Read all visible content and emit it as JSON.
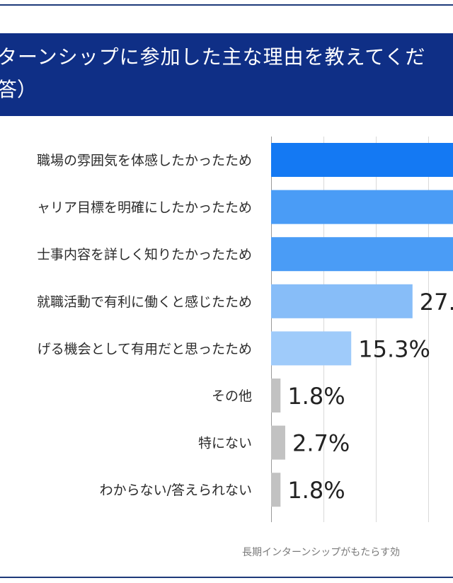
{
  "header": {
    "title_line1": "ターンシップに参加した主な理由を教えてくだ",
    "title_line2": "答）"
  },
  "source": "長期インターンシップがもたらす効",
  "colors": {
    "header_bg": "#0f2f86",
    "bar_top": "#1479f3",
    "bar_mid": "#4a9cf6",
    "bar_light": "#87bdf8",
    "bar_lighter": "#9fcbfa",
    "bar_gray": "#c2c2c2"
  },
  "chart_data": {
    "type": "bar",
    "orientation": "horizontal",
    "categories": [
      "職場の雰囲気を体感したかったため",
      "ャリア目標を明確にしたかったため",
      "士事内容を詳しく知りたかったため",
      "就職活動で有利に働くと感じたため",
      "げる機会として有用だと思ったため",
      "その他",
      "特にない",
      "わからない/答えられない"
    ],
    "values": [
      null,
      null,
      null,
      27.0,
      15.3,
      1.8,
      2.7,
      1.8
    ],
    "value_labels": [
      "",
      "",
      "",
      "27.",
      "15.3%",
      "1.8%",
      "2.7%",
      "1.8%"
    ],
    "bar_colors": [
      "#1479f3",
      "#4a9cf6",
      "#4a9cf6",
      "#87bdf8",
      "#9fcbfa",
      "#c2c2c2",
      "#c2c2c2",
      "#c2c2c2"
    ],
    "xlim": [
      0,
      50
    ],
    "grid": true
  }
}
